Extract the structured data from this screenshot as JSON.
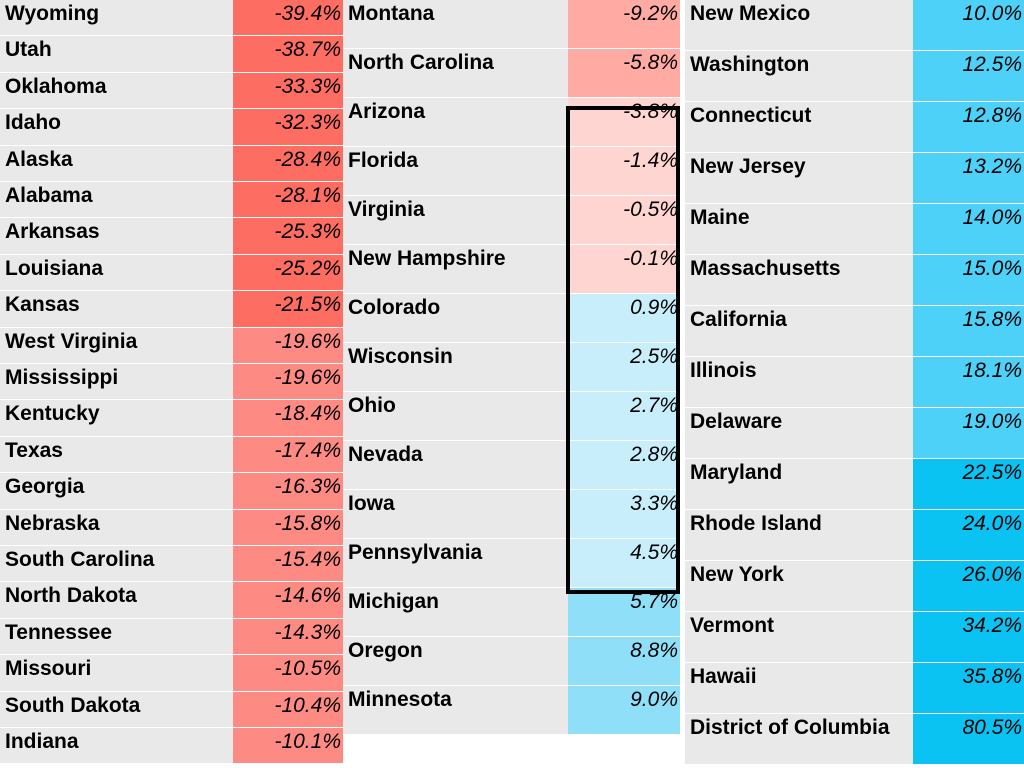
{
  "columns": [
    {
      "rows": [
        {
          "state": "Wyoming",
          "value": "-39.4%",
          "color": "#fe6d62"
        },
        {
          "state": "Utah",
          "value": "-38.7%",
          "color": "#fe6d62"
        },
        {
          "state": "Oklahoma",
          "value": "-33.3%",
          "color": "#fe6d62"
        },
        {
          "state": "Idaho",
          "value": "-32.3%",
          "color": "#fe6d62"
        },
        {
          "state": "Alaska",
          "value": "-28.4%",
          "color": "#fe6d62"
        },
        {
          "state": "Alabama",
          "value": "-28.1%",
          "color": "#fe6d62"
        },
        {
          "state": "Arkansas",
          "value": "-25.3%",
          "color": "#fe6d62"
        },
        {
          "state": "Louisiana",
          "value": "-25.2%",
          "color": "#fe6d62"
        },
        {
          "state": "Kansas",
          "value": "-21.5%",
          "color": "#fe6d62"
        },
        {
          "state": "West Virginia",
          "value": "-19.6%",
          "color": "#fe8b83"
        },
        {
          "state": "Mississippi",
          "value": "-19.6%",
          "color": "#fe8b83"
        },
        {
          "state": "Kentucky",
          "value": "-18.4%",
          "color": "#fe8b83"
        },
        {
          "state": "Texas",
          "value": "-17.4%",
          "color": "#fe8b83"
        },
        {
          "state": "Georgia",
          "value": "-16.3%",
          "color": "#fe8b83"
        },
        {
          "state": "Nebraska",
          "value": "-15.8%",
          "color": "#fe8b83"
        },
        {
          "state": "South Carolina",
          "value": "-15.4%",
          "color": "#fe8b83"
        },
        {
          "state": "North Dakota",
          "value": "-14.6%",
          "color": "#fe8b83"
        },
        {
          "state": "Tennessee",
          "value": "-14.3%",
          "color": "#fe8b83"
        },
        {
          "state": "Missouri",
          "value": "-10.5%",
          "color": "#fe8b83"
        },
        {
          "state": "South Dakota",
          "value": "-10.4%",
          "color": "#fe8b83"
        },
        {
          "state": "Indiana",
          "value": "-10.1%",
          "color": "#fe8b83"
        }
      ]
    },
    {
      "rows": [
        {
          "state": "Montana",
          "value": "-9.2%",
          "color": "#ffaba4"
        },
        {
          "state": "North Carolina",
          "value": "-5.8%",
          "color": "#ffaba4"
        },
        {
          "state": "Arizona",
          "value": "-3.8%",
          "color": "#ffd5d2"
        },
        {
          "state": "Florida",
          "value": "-1.4%",
          "color": "#ffd5d2"
        },
        {
          "state": "Virginia",
          "value": "-0.5%",
          "color": "#ffd5d2"
        },
        {
          "state": "New Hampshire",
          "value": "-0.1%",
          "color": "#ffd5d2"
        },
        {
          "state": "Colorado",
          "value": "0.9%",
          "color": "#c8eefc"
        },
        {
          "state": "Wisconsin",
          "value": "2.5%",
          "color": "#c8eefc"
        },
        {
          "state": "Ohio",
          "value": "2.7%",
          "color": "#c8eefc"
        },
        {
          "state": "Nevada",
          "value": "2.8%",
          "color": "#c8eefc"
        },
        {
          "state": "Iowa",
          "value": "3.3%",
          "color": "#c8eefc"
        },
        {
          "state": "Pennsylvania",
          "value": "4.5%",
          "color": "#c8eefc"
        },
        {
          "state": "Michigan",
          "value": "5.7%",
          "color": "#8fdff9"
        },
        {
          "state": "Oregon",
          "value": "8.8%",
          "color": "#8fdff9"
        },
        {
          "state": "Minnesota",
          "value": "9.0%",
          "color": "#8fdff9"
        }
      ]
    },
    {
      "rows": [
        {
          "state": "New Mexico",
          "value": "10.0%",
          "color": "#4ed1f8"
        },
        {
          "state": "Washington",
          "value": "12.5%",
          "color": "#4ed1f8"
        },
        {
          "state": "Connecticut",
          "value": "12.8%",
          "color": "#4ed1f8"
        },
        {
          "state": "New Jersey",
          "value": "13.2%",
          "color": "#4ed1f8"
        },
        {
          "state": "Maine",
          "value": "14.0%",
          "color": "#4ed1f8"
        },
        {
          "state": "Massachusetts",
          "value": "15.0%",
          "color": "#4ed1f8"
        },
        {
          "state": "California",
          "value": "15.8%",
          "color": "#4ed1f8"
        },
        {
          "state": "Illinois",
          "value": "18.1%",
          "color": "#4ed1f8"
        },
        {
          "state": "Delaware",
          "value": "19.0%",
          "color": "#4ed1f8"
        },
        {
          "state": "Maryland",
          "value": "22.5%",
          "color": "#0ac3f2"
        },
        {
          "state": "Rhode Island",
          "value": "24.0%",
          "color": "#0ac3f2"
        },
        {
          "state": "New York",
          "value": "26.0%",
          "color": "#0ac3f2"
        },
        {
          "state": "Vermont",
          "value": "34.2%",
          "color": "#0ac3f2"
        },
        {
          "state": "Hawaii",
          "value": "35.8%",
          "color": "#0ac3f2"
        },
        {
          "state": "District of Columbia",
          "value": "80.5%",
          "color": "#0ac3f2"
        }
      ]
    }
  ]
}
